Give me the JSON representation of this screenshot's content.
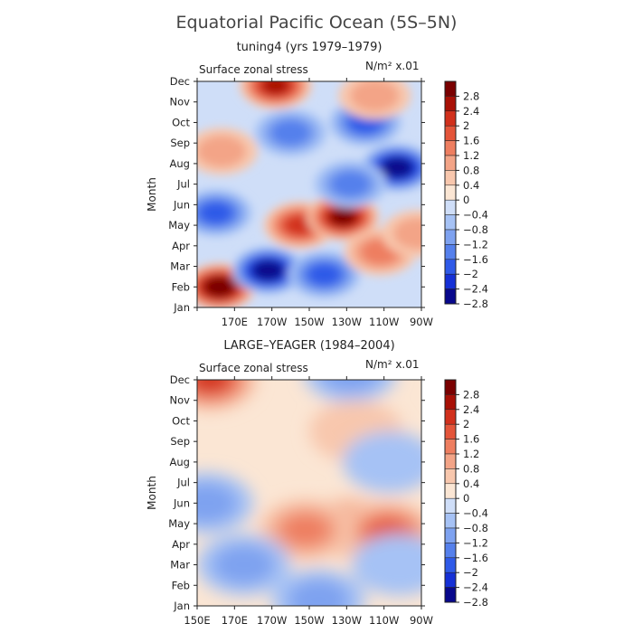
{
  "figure": {
    "title": "Equatorial Pacific Ocean (5S–5N)"
  },
  "colorscale": {
    "colors": [
      "#08088c",
      "#1530d6",
      "#2f5ae8",
      "#5580ec",
      "#7ea2f0",
      "#a6c2f5",
      "#cfdef8",
      "#fbe6d4",
      "#f8c7ad",
      "#f3a487",
      "#ee7e60",
      "#e4553a",
      "#d1301c",
      "#a81006",
      "#7a0000"
    ],
    "labels": [
      "2.8",
      "2.4",
      "2",
      "1.6",
      "1.2",
      "0.8",
      "0.4",
      "0",
      "−0.4",
      "−0.8",
      "−1.2",
      "−1.6",
      "−2",
      "−2.4",
      "−2.8"
    ]
  },
  "chart_data": [
    {
      "type": "heatmap",
      "title": "tuning4 (yrs 1979–1979)",
      "subtitle": "Surface zonal stress",
      "units": "N/m² x.01",
      "ylabel": "Month",
      "y_ticks": [
        "Jan",
        "Feb",
        "Mar",
        "Apr",
        "May",
        "Jun",
        "Jul",
        "Aug",
        "Sep",
        "Oct",
        "Nov",
        "Dec"
      ],
      "x_ticks": [
        "170E",
        "170W",
        "150W",
        "130W",
        "110W",
        "90W"
      ],
      "x_range": [
        "150E",
        "90W"
      ],
      "value_levels": [
        -2.8,
        -2.4,
        -2.0,
        -1.6,
        -1.2,
        -0.8,
        -0.4,
        0,
        0.4,
        0.8,
        1.2,
        1.6,
        2.0,
        2.4,
        2.8
      ],
      "features": [
        {
          "lon": 162,
          "month": 1.0,
          "value": 3.0
        },
        {
          "lon": 188,
          "month": 1.8,
          "value": -2.8
        },
        {
          "lon": 218,
          "month": 1.6,
          "value": -1.6
        },
        {
          "lon": 205,
          "month": 4.0,
          "value": 2.0
        },
        {
          "lon": 228,
          "month": 4.4,
          "value": 2.6
        },
        {
          "lon": 248,
          "month": 2.7,
          "value": 1.2
        },
        {
          "lon": 160,
          "month": 4.6,
          "value": -1.6
        },
        {
          "lon": 257,
          "month": 6.8,
          "value": -2.6
        },
        {
          "lon": 232,
          "month": 6.0,
          "value": -1.0
        },
        {
          "lon": 200,
          "month": 8.5,
          "value": -1.2
        },
        {
          "lon": 240,
          "month": 9.0,
          "value": -1.6
        },
        {
          "lon": 192,
          "month": 10.8,
          "value": 2.2
        },
        {
          "lon": 245,
          "month": 10.3,
          "value": 0.8
        },
        {
          "lon": 163,
          "month": 7.6,
          "value": 0.8
        },
        {
          "lon": 268,
          "month": 3.6,
          "value": 0.8
        }
      ]
    },
    {
      "type": "heatmap",
      "title": "LARGE–YEAGER (1984–2004)",
      "subtitle": "Surface zonal stress",
      "units": "N/m² x.01",
      "ylabel": "Month",
      "y_ticks": [
        "Jan",
        "Feb",
        "Mar",
        "Apr",
        "May",
        "Jun",
        "Jul",
        "Aug",
        "Sep",
        "Oct",
        "Nov",
        "Dec"
      ],
      "x_ticks": [
        "150E",
        "170E",
        "170W",
        "150W",
        "130W",
        "110W",
        "90W"
      ],
      "x_range": [
        "150E",
        "90W"
      ],
      "value_levels": [
        -2.8,
        -2.4,
        -2.0,
        -1.6,
        -1.2,
        -0.8,
        -0.4,
        0,
        0.4,
        0.8,
        1.2,
        1.6,
        2.0,
        2.4,
        2.8
      ],
      "features": [
        {
          "lon": 157,
          "month": 11.0,
          "value": 1.8
        },
        {
          "lon": 232,
          "month": 3.8,
          "value": 1.4
        },
        {
          "lon": 252,
          "month": 3.6,
          "value": 1.6
        },
        {
          "lon": 208,
          "month": 3.7,
          "value": 1.0
        },
        {
          "lon": 175,
          "month": 2.0,
          "value": -0.9
        },
        {
          "lon": 215,
          "month": 0.3,
          "value": -0.9
        },
        {
          "lon": 155,
          "month": 5.0,
          "value": -0.7
        },
        {
          "lon": 232,
          "month": 11.4,
          "value": -0.9
        },
        {
          "lon": 235,
          "month": 8.5,
          "value": 0.6
        },
        {
          "lon": 253,
          "month": 7.0,
          "value": -0.5
        },
        {
          "lon": 258,
          "month": 2.0,
          "value": -0.5
        }
      ]
    }
  ]
}
